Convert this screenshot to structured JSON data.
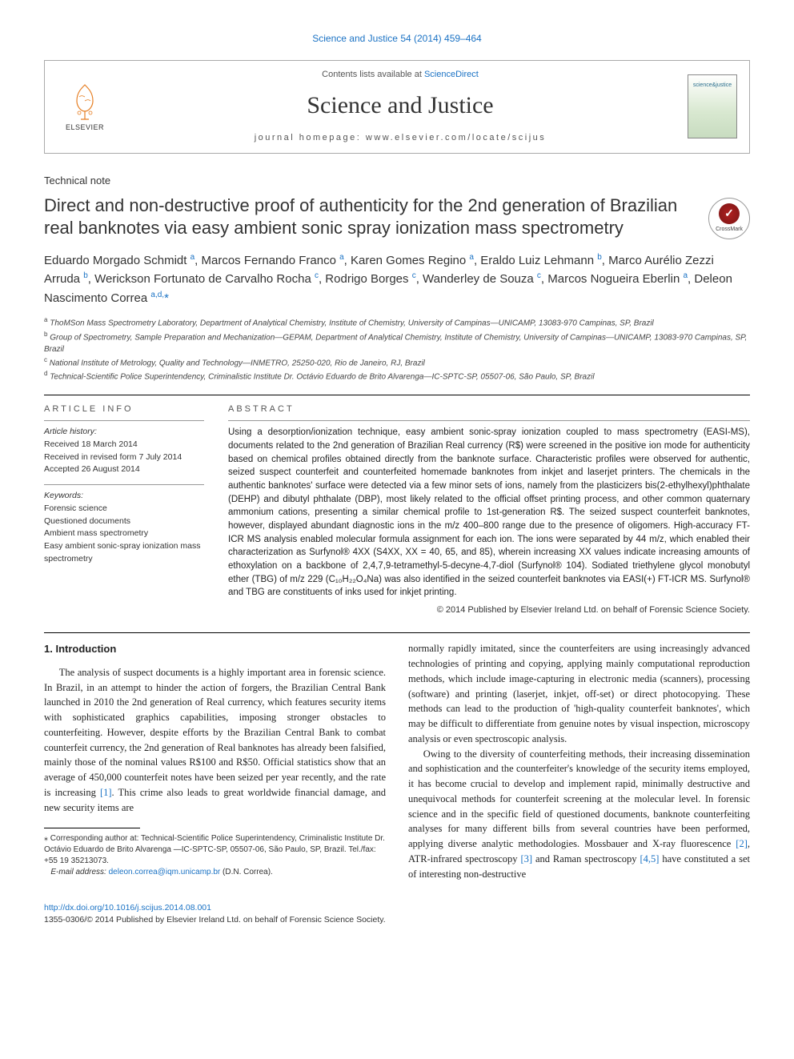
{
  "top_link": "Science and Justice 54 (2014) 459–464",
  "header": {
    "contents_text": "Contents lists available at ",
    "contents_link": "ScienceDirect",
    "journal_name": "Science and Justice",
    "homepage_label": "journal homepage: ",
    "homepage_url": "www.elsevier.com/locate/scijus",
    "publisher": "ELSEVIER",
    "cover_text": "science&justice"
  },
  "article_type": "Technical note",
  "title": "Direct and non-destructive proof of authenticity for the 2nd generation of Brazilian real banknotes via easy ambient sonic spray ionization mass spectrometry",
  "crossmark": "CrossMark",
  "authors_html": "Eduardo Morgado Schmidt <sup>a</sup>, Marcos Fernando Franco <sup>a</sup>, Karen Gomes Regino <sup>a</sup>, Eraldo Luiz Lehmann <sup>b</sup>, Marco Aurélio Zezzi Arruda <sup>b</sup>, Werickson Fortunato de Carvalho Rocha <sup>c</sup>, Rodrigo Borges <sup>c</sup>, Wanderley de Souza <sup>c</sup>, Marcos Nogueira Eberlin <sup>a</sup>, Deleon Nascimento Correa <sup>a,d,</sup><span class=\"star\">*</span>",
  "affiliations": [
    "ThoMSon Mass Spectrometry Laboratory, Department of Analytical Chemistry, Institute of Chemistry, University of Campinas—UNICAMP, 13083-970 Campinas, SP, Brazil",
    "Group of Spectrometry, Sample Preparation and Mechanization—GEPAM, Department of Analytical Chemistry, Institute of Chemistry, University of Campinas—UNICAMP, 13083-970 Campinas, SP, Brazil",
    "National Institute of Metrology, Quality and Technology—INMETRO, 25250-020, Rio de Janeiro, RJ, Brazil",
    "Technical-Scientific Police Superintendency, Criminalistic Institute Dr. Octávio Eduardo de Brito Alvarenga—IC-SPTC-SP, 05507-06, São Paulo, SP, Brazil"
  ],
  "aff_labels": [
    "a",
    "b",
    "c",
    "d"
  ],
  "article_info": {
    "heading": "article info",
    "history_title": "Article history:",
    "history": [
      "Received 18 March 2014",
      "Received in revised form 7 July 2014",
      "Accepted 26 August 2014"
    ],
    "keywords_title": "Keywords:",
    "keywords": [
      "Forensic science",
      "Questioned documents",
      "Ambient mass spectrometry",
      "Easy ambient sonic-spray ionization mass spectrometry"
    ]
  },
  "abstract": {
    "heading": "abstract",
    "text": "Using a desorption/ionization technique, easy ambient sonic-spray ionization coupled to mass spectrometry (EASI-MS), documents related to the 2nd generation of Brazilian Real currency (R$) were screened in the positive ion mode for authenticity based on chemical profiles obtained directly from the banknote surface. Characteristic profiles were observed for authentic, seized suspect counterfeit and counterfeited homemade banknotes from inkjet and laserjet printers. The chemicals in the authentic banknotes' surface were detected via a few minor sets of ions, namely from the plasticizers bis(2-ethylhexyl)phthalate (DEHP) and dibutyl phthalate (DBP), most likely related to the official offset printing process, and other common quaternary ammonium cations, presenting a similar chemical profile to 1st-generation R$. The seized suspect counterfeit banknotes, however, displayed abundant diagnostic ions in the m/z 400–800 range due to the presence of oligomers. High-accuracy FT-ICR MS analysis enabled molecular formula assignment for each ion. The ions were separated by 44 m/z, which enabled their characterization as Surfynol® 4XX (S4XX, XX = 40, 65, and 85), wherein increasing XX values indicate increasing amounts of ethoxylation on a backbone of 2,4,7,9-tetramethyl-5-decyne-4,7-diol (Surfynol® 104). Sodiated triethylene glycol monobutyl ether (TBG) of m/z 229 (C₁₀H₂₂O₄Na) was also identified in the seized counterfeit banknotes via EASI(+) FT-ICR MS. Surfynol® and TBG are constituents of inks used for inkjet printing.",
    "copyright": "© 2014 Published by Elsevier Ireland Ltd. on behalf of Forensic Science Society."
  },
  "body": {
    "section_heading": "1. Introduction",
    "p1": "The analysis of suspect documents is a highly important area in forensic science. In Brazil, in an attempt to hinder the action of forgers, the Brazilian Central Bank launched in 2010 the 2nd generation of Real currency, which features security items with sophisticated graphics capabilities, imposing stronger obstacles to counterfeiting. However, despite efforts by the Brazilian Central Bank to combat counterfeit currency, the 2nd generation of Real banknotes has already been falsified, mainly those of the nominal values R$100 and R$50. Official statistics show that an average of 450,000 counterfeit notes have been seized per year recently, and the rate is increasing ",
    "ref1": "[1]",
    "p1b": ". This crime also leads to great worldwide financial damage, and new security items are",
    "p2": "normally rapidly imitated, since the counterfeiters are using increasingly advanced technologies of printing and copying, applying mainly computational reproduction methods, which include image-capturing in electronic media (scanners), processing (software) and printing (laserjet, inkjet, off-set) or direct photocopying. These methods can lead to the production of 'high-quality counterfeit banknotes', which may be difficult to differentiate from genuine notes by visual inspection, microscopy analysis or even spectroscopic analysis.",
    "p3a": "Owing to the diversity of counterfeiting methods, their increasing dissemination and sophistication and the counterfeiter's knowledge of the security items employed, it has become crucial to develop and implement rapid, minimally destructive and unequivocal methods for counterfeit screening at the molecular level. In forensic science and in the specific field of questioned documents, banknote counterfeiting analyses for many different bills from several countries have been performed, applying diverse analytic methodologies. Mossbauer and X-ray fluorescence ",
    "ref2": "[2]",
    "p3b": ", ATR-infrared spectroscopy ",
    "ref3": "[3]",
    "p3c": " and Raman spectroscopy ",
    "ref45": "[4,5]",
    "p3d": " have constituted a set of interesting non-destructive"
  },
  "footnote": {
    "star": "⁎",
    "corr": "Corresponding author at: Technical-Scientific Police Superintendency, Criminalistic Institute Dr. Octávio Eduardo de Brito Alvarenga —IC-SPTC-SP, 05507-06, São Paulo, SP, Brazil. Tel./fax: +55 19 35213073.",
    "email_label": "E-mail address: ",
    "email": "deleon.correa@iqm.unicamp.br",
    "email_after": " (D.N. Correa)."
  },
  "footer": {
    "doi": "http://dx.doi.org/10.1016/j.scijus.2014.08.001",
    "issn_line": "1355-0306/© 2014 Published by Elsevier Ireland Ltd. on behalf of Forensic Science Society."
  },
  "colors": {
    "link": "#1a72c4",
    "text": "#222222",
    "muted": "#555555",
    "border": "#aaaaaa"
  }
}
